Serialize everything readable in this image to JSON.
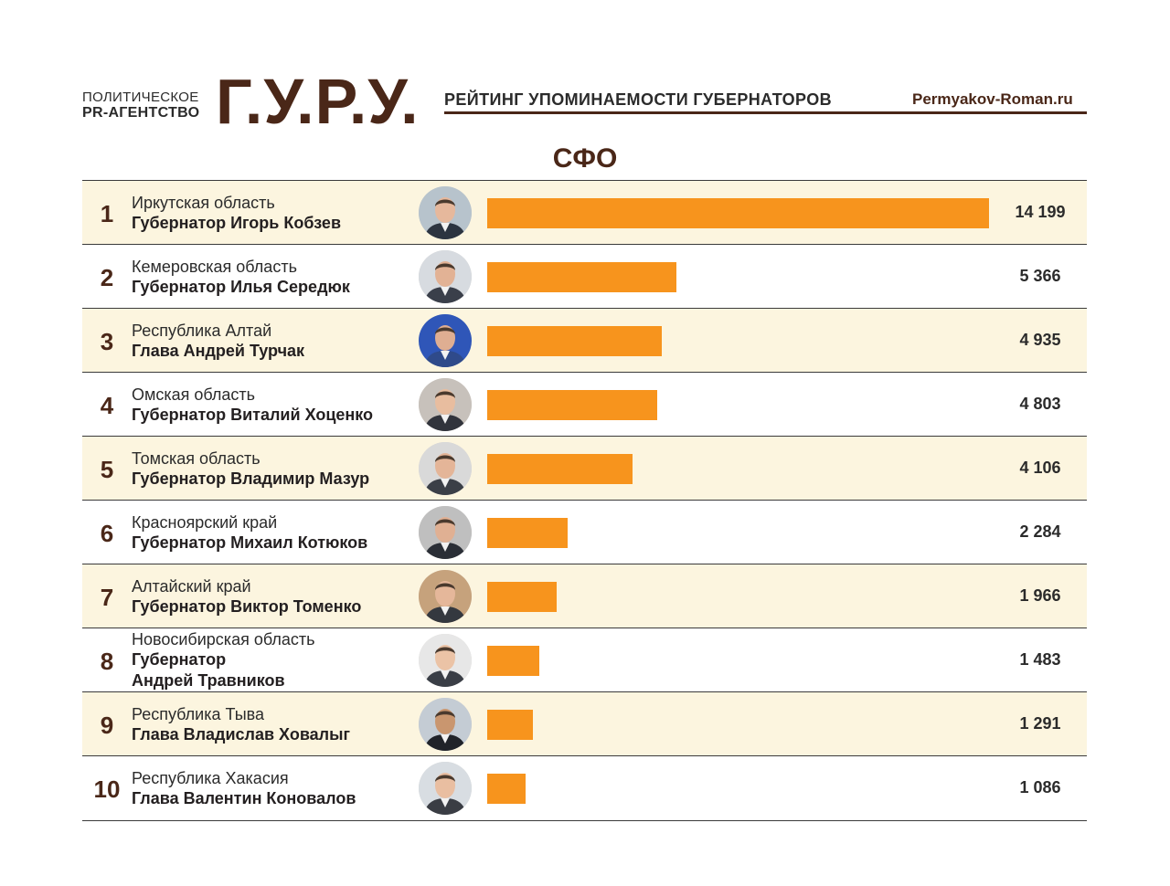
{
  "header": {
    "agency_line1": "ПОЛИТИЧЕСКОЕ",
    "agency_line2": "PR-АГЕНТСТВО",
    "logo": "Г.У.Р.У.",
    "subtitle": "РЕЙТИНГ УПОМИНАЕМОСТИ ГУБЕРНАТОРОВ",
    "site": "Permyakov-Roman.ru"
  },
  "colors": {
    "bar": "#f7941d",
    "brand": "#4a2718",
    "row_shade": "#fcf5df"
  },
  "chart_data": {
    "type": "bar",
    "title": "СФО",
    "orientation": "horizontal",
    "xlim": [
      0,
      14199
    ],
    "rows": [
      {
        "rank": "1",
        "region": "Иркутская область",
        "governor_lines": [
          "Губернатор Игорь Кобзев"
        ],
        "value": 14199,
        "value_label": "14 199",
        "shaded": true
      },
      {
        "rank": "2",
        "region": "Кемеровская область",
        "governor_lines": [
          "Губернатор Илья Середюк"
        ],
        "value": 5366,
        "value_label": "5 366",
        "shaded": false
      },
      {
        "rank": "3",
        "region": "Республика Алтай",
        "governor_lines": [
          "Глава Андрей Турчак"
        ],
        "value": 4935,
        "value_label": "4 935",
        "shaded": true
      },
      {
        "rank": "4",
        "region": "Омская область",
        "governor_lines": [
          "Губернатор Виталий Хоценко"
        ],
        "value": 4803,
        "value_label": "4 803",
        "shaded": false
      },
      {
        "rank": "5",
        "region": "Томская область",
        "governor_lines": [
          "Губернатор Владимир Мазур"
        ],
        "value": 4106,
        "value_label": "4 106",
        "shaded": true
      },
      {
        "rank": "6",
        "region": "Красноярский край",
        "governor_lines": [
          "Губернатор Михаил Котюков"
        ],
        "value": 2284,
        "value_label": "2 284",
        "shaded": false
      },
      {
        "rank": "7",
        "region": "Алтайский край",
        "governor_lines": [
          "Губернатор Виктор Томенко"
        ],
        "value": 1966,
        "value_label": "1 966",
        "shaded": true
      },
      {
        "rank": "8",
        "region": "Новосибирская область",
        "governor_lines": [
          "Губернатор",
          "Андрей Травников"
        ],
        "value": 1483,
        "value_label": "1 483",
        "shaded": false
      },
      {
        "rank": "9",
        "region": "Республика Тыва",
        "governor_lines": [
          "Глава Владислав Ховалыг"
        ],
        "value": 1291,
        "value_label": "1 291",
        "shaded": true
      },
      {
        "rank": "10",
        "region": "Республика Хакасия",
        "governor_lines": [
          "Глава Валентин Коновалов"
        ],
        "value": 1086,
        "value_label": "1 086",
        "shaded": false
      }
    ]
  }
}
